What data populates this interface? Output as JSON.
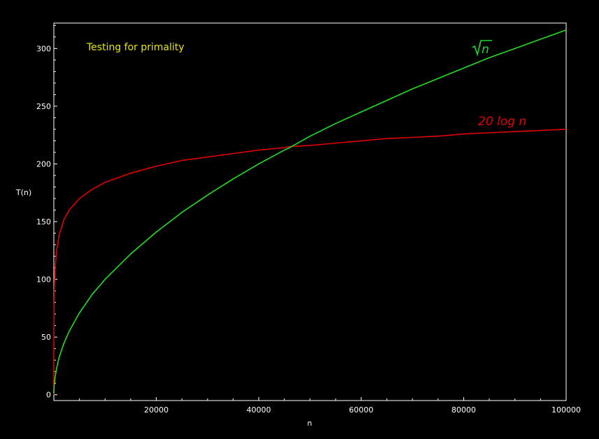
{
  "chart_data": {
    "type": "line",
    "title": "Testing for primality",
    "title_color": "#e6e600",
    "xlabel": "n",
    "ylabel": "T(n)",
    "xlim": [
      0,
      100000
    ],
    "ylim": [
      -5,
      322
    ],
    "x_ticks": [
      20000,
      40000,
      60000,
      80000,
      100000
    ],
    "y_ticks": [
      0,
      50,
      100,
      150,
      200,
      250,
      300
    ],
    "grid": false,
    "axis_color": "#ffffff",
    "background": "#000000",
    "series": [
      {
        "name": "20 log n",
        "color": "#e00000",
        "x": [
          1,
          10,
          50,
          100,
          200,
          500,
          1000,
          2000,
          3000,
          5000,
          7500,
          10000,
          15000,
          20000,
          25000,
          30000,
          35000,
          40000,
          45000,
          46000,
          50000,
          55000,
          60000,
          65000,
          70000,
          75000,
          80000,
          85000,
          90000,
          95000,
          100000
        ],
        "y": [
          0,
          46,
          78,
          92,
          106,
          124,
          138,
          152,
          160,
          170,
          178,
          184,
          192,
          198,
          203,
          206,
          209,
          212,
          214,
          215,
          216,
          218,
          220,
          222,
          223,
          224,
          226,
          227,
          228,
          229,
          230
        ]
      },
      {
        "name": "sqrt(n)",
        "color": "#22dd22",
        "x": [
          1,
          10,
          50,
          100,
          200,
          500,
          1000,
          2000,
          3000,
          5000,
          7500,
          10000,
          15000,
          20000,
          25000,
          30000,
          35000,
          40000,
          45000,
          46000,
          50000,
          55000,
          60000,
          65000,
          70000,
          75000,
          80000,
          85000,
          90000,
          95000,
          100000
        ],
        "y": [
          1,
          3,
          7,
          10,
          14,
          22,
          32,
          45,
          55,
          71,
          87,
          100,
          122,
          141,
          158,
          173,
          187,
          200,
          212,
          214,
          224,
          235,
          245,
          255,
          265,
          274,
          283,
          292,
          300,
          308,
          316
        ]
      }
    ],
    "labels": {
      "log_prefix": "20 log ",
      "log_var": "n",
      "sqrt_var": "n"
    }
  }
}
